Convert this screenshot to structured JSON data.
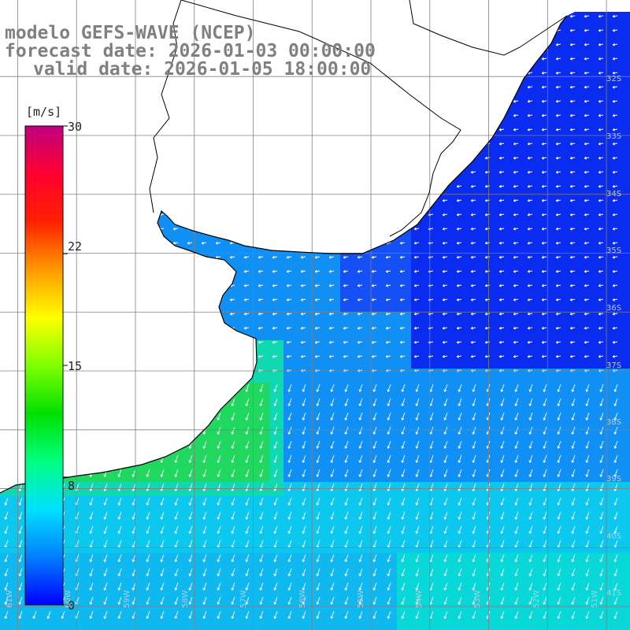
{
  "title": {
    "line1": "modelo GEFS-WAVE (NCEP)",
    "line2": "forecast date: 2026-01-03 00:00:00",
    "line3": "valid date: 2026-01-05 18:00:00"
  },
  "colorbar": {
    "unit": "[m/s]",
    "ticks": [
      "30",
      "22",
      "15",
      "8",
      "0"
    ],
    "tick_values": [
      30,
      22,
      15,
      8,
      0
    ],
    "range": [
      0,
      30
    ],
    "colors": [
      "#0000ff",
      "#0080ff",
      "#00e0ff",
      "#00ff80",
      "#00e000",
      "#80ff00",
      "#ffff00",
      "#ff9900",
      "#ff2000",
      "#ff0030",
      "#c00080"
    ]
  },
  "map": {
    "lat_labels": [
      "32S",
      "33S",
      "34S",
      "35S",
      "36S",
      "37S",
      "38S",
      "39S",
      "40S",
      "41S"
    ],
    "lat_values": [
      -32,
      -33,
      -34,
      -35,
      -36,
      -37,
      -38,
      -39,
      -40,
      -41
    ],
    "lon_labels": [
      "61W",
      "60W",
      "59W",
      "58W",
      "57W",
      "56W",
      "55W",
      "54W",
      "53W",
      "52W",
      "51W"
    ],
    "lon_values": [
      -61,
      -60,
      -59,
      -58,
      -57,
      -56,
      -55,
      -54,
      -53,
      -52,
      -51
    ],
    "lon_range": [
      -61.3,
      -50.6
    ],
    "lat_range": [
      -41.4,
      -30.7
    ],
    "land_color": "#ffffff",
    "grid_color": "#808080",
    "coast_color": "#000000",
    "arrow_color": "#ffffff"
  }
}
